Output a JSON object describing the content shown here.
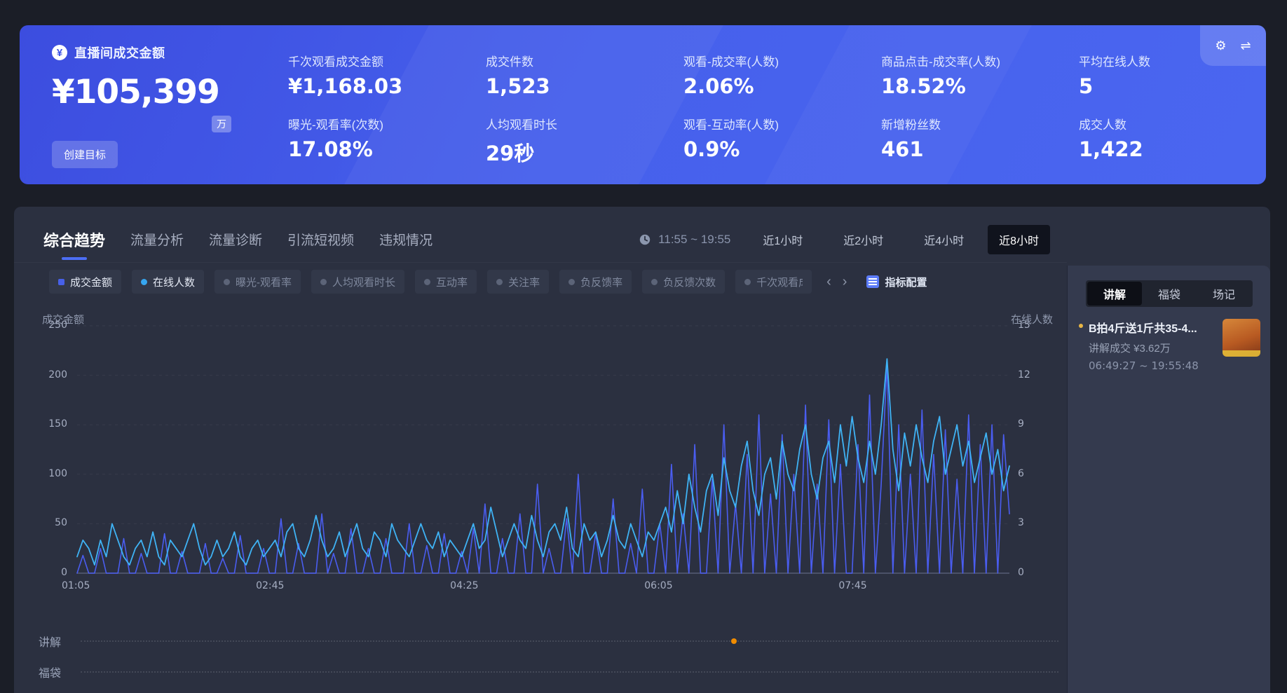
{
  "header": {
    "title": "直播间成交金额",
    "currency_symbol": "¥",
    "main_value": "¥105,399",
    "unit_badge": "万",
    "create_goal_label": "创建目标",
    "metrics": [
      {
        "label": "千次观看成交金额",
        "value": "¥1,168.03"
      },
      {
        "label": "曝光-观看率(次数)",
        "value": "17.08%"
      },
      {
        "label": "成交件数",
        "value": "1,523"
      },
      {
        "label": "人均观看时长",
        "value": "29秒"
      },
      {
        "label": "观看-成交率(人数)",
        "value": "2.06%"
      },
      {
        "label": "观看-互动率(人数)",
        "value": "0.9%"
      },
      {
        "label": "商品点击-成交率(人数)",
        "value": "18.52%"
      },
      {
        "label": "新增粉丝数",
        "value": "461"
      },
      {
        "label": "平均在线人数",
        "value": "5"
      },
      {
        "label": "成交人数",
        "value": "1,422"
      }
    ],
    "corner_icons": {
      "gear": "⚙",
      "swap": "⇌"
    }
  },
  "tabs": {
    "items": [
      {
        "label": "综合趋势"
      },
      {
        "label": "流量分析"
      },
      {
        "label": "流量诊断"
      },
      {
        "label": "引流短视频"
      },
      {
        "label": "违规情况"
      }
    ]
  },
  "toolbar": {
    "time_range": "11:55 ~ 19:55",
    "range_buttons": [
      {
        "label": "近1小时"
      },
      {
        "label": "近2小时"
      },
      {
        "label": "近4小时"
      },
      {
        "label": "近8小时"
      }
    ]
  },
  "chips": {
    "items": [
      {
        "label": "成交金额",
        "dot_color": "#4760e8"
      },
      {
        "label": "在线人数",
        "dot_color": "#36a6f0"
      },
      {
        "label": "曝光-观看率"
      },
      {
        "label": "人均观看时长"
      },
      {
        "label": "互动率"
      },
      {
        "label": "关注率"
      },
      {
        "label": "负反馈率"
      },
      {
        "label": "负反馈次数"
      },
      {
        "label": "千次观看成交金额"
      }
    ],
    "prev": "‹",
    "next": "›",
    "config_label": "指标配置"
  },
  "side_panel": {
    "tabs": [
      {
        "label": "讲解"
      },
      {
        "label": "福袋"
      },
      {
        "label": "场记"
      }
    ],
    "explain_item": {
      "title": "B拍4斤送1斤共35-4...",
      "subtitle": "讲解成交 ¥3.62万",
      "time": "06:49:27 ~ 19:55:48"
    }
  },
  "timeline_rows": [
    {
      "label": "讲解",
      "marker_pos": 0.665
    },
    {
      "label": "福袋",
      "marker_pos": null
    }
  ],
  "chart_data": {
    "type": "line",
    "left_axis": {
      "title": "成交金额",
      "max": 250,
      "ticks": [
        0,
        50,
        100,
        150,
        200,
        250
      ]
    },
    "right_axis": {
      "title": "在线人数",
      "max": 15,
      "ticks": [
        0,
        3,
        6,
        9,
        12,
        15
      ]
    },
    "x_max_minutes": 480,
    "x_ticks": [
      {
        "label": "01:05",
        "min": 0
      },
      {
        "label": "02:45",
        "min": 100
      },
      {
        "label": "04:25",
        "min": 200
      },
      {
        "label": "06:05",
        "min": 300
      },
      {
        "label": "07:45",
        "min": 400
      }
    ],
    "sample_step_minutes": 3,
    "series": [
      {
        "name": "成交金额",
        "axis": "left",
        "color": "#4a5df0",
        "values": [
          0,
          18,
          0,
          0,
          25,
          0,
          0,
          0,
          35,
          0,
          0,
          20,
          0,
          0,
          0,
          40,
          0,
          0,
          22,
          0,
          0,
          0,
          30,
          0,
          0,
          15,
          0,
          0,
          38,
          0,
          0,
          0,
          25,
          0,
          0,
          55,
          0,
          0,
          30,
          0,
          0,
          0,
          60,
          0,
          20,
          0,
          0,
          45,
          0,
          0,
          25,
          0,
          0,
          35,
          0,
          0,
          0,
          50,
          0,
          0,
          28,
          0,
          0,
          40,
          0,
          0,
          22,
          0,
          45,
          0,
          70,
          0,
          0,
          35,
          0,
          0,
          60,
          0,
          0,
          90,
          0,
          25,
          0,
          0,
          55,
          0,
          100,
          0,
          0,
          40,
          0,
          0,
          75,
          0,
          0,
          30,
          0,
          85,
          0,
          0,
          50,
          0,
          110,
          0,
          60,
          0,
          130,
          0,
          0,
          95,
          0,
          150,
          0,
          70,
          0,
          120,
          0,
          160,
          0,
          80,
          0,
          140,
          0,
          100,
          0,
          170,
          0,
          90,
          0,
          155,
          0,
          110,
          0,
          0,
          130,
          0,
          180,
          0,
          90,
          212,
          0,
          150,
          0,
          100,
          0,
          165,
          0,
          120,
          0,
          145,
          0,
          95,
          0,
          160,
          0,
          130,
          0,
          150,
          0,
          140,
          60
        ]
      },
      {
        "name": "在线人数",
        "axis": "right",
        "color": "#3fb3f5",
        "values": [
          1,
          2,
          1.5,
          0.5,
          2,
          1,
          3,
          2,
          1,
          0.5,
          1.5,
          2,
          1,
          2.5,
          1,
          0.5,
          2,
          1.5,
          1,
          2,
          3,
          1.5,
          0.5,
          1,
          2,
          1,
          1.5,
          2.5,
          1,
          0.5,
          1.5,
          2,
          1,
          1.5,
          2,
          1,
          2.5,
          3,
          1.5,
          1,
          2,
          3.5,
          2,
          1,
          1.5,
          2.5,
          1,
          2,
          3,
          1.5,
          1,
          2.5,
          2,
          1,
          3,
          2,
          1.5,
          1,
          2,
          3,
          2,
          1.5,
          2.5,
          1,
          2,
          1.5,
          1,
          2,
          3,
          1.5,
          2,
          4,
          2.5,
          1,
          2,
          3,
          2,
          1.5,
          3.5,
          2,
          1,
          2.5,
          3,
          2,
          4,
          1.5,
          1,
          3,
          2,
          2.5,
          1,
          2,
          3.5,
          2,
          1.5,
          3,
          2,
          1,
          2.5,
          2,
          3,
          4,
          2.5,
          5,
          3,
          6,
          4,
          2.5,
          5,
          6,
          3.5,
          7,
          5,
          4,
          6.5,
          8,
          5,
          3.5,
          6,
          7,
          4.5,
          8,
          6,
          5,
          7.5,
          9,
          6,
          4.5,
          7,
          8,
          5.5,
          9,
          6.5,
          9.5,
          7,
          5.5,
          8,
          6,
          9,
          13,
          7.5,
          5,
          8.5,
          6.5,
          9,
          7,
          5.5,
          8,
          9.5,
          6,
          7.5,
          9,
          6.5,
          8,
          5.5,
          7,
          8.5,
          6,
          7.5,
          5,
          6.5
        ]
      }
    ]
  }
}
